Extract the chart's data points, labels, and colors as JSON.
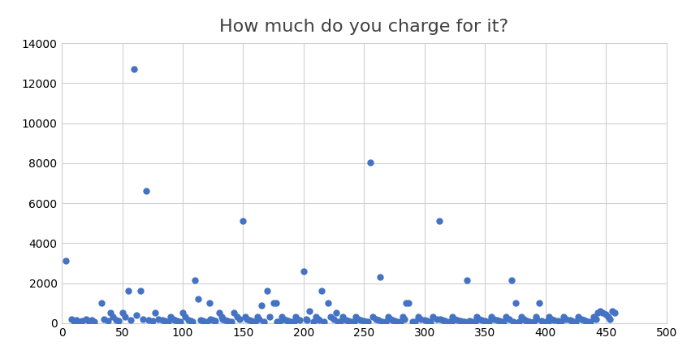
{
  "title": "How much do you charge for it?",
  "title_fontsize": 16,
  "dot_color": "#4472C4",
  "dot_size": 25,
  "xlim": [
    0,
    500
  ],
  "ylim": [
    0,
    14000
  ],
  "xticks": [
    0,
    50,
    100,
    150,
    200,
    250,
    300,
    350,
    400,
    450,
    500
  ],
  "yticks": [
    0,
    2000,
    4000,
    6000,
    8000,
    10000,
    12000,
    14000
  ],
  "grid_color": "#d0d0d0",
  "background_color": "#ffffff",
  "x_data": [
    3,
    8,
    10,
    12,
    15,
    17,
    20,
    22,
    25,
    27,
    33,
    35,
    38,
    40,
    42,
    45,
    47,
    50,
    52,
    55,
    57,
    60,
    62,
    65,
    67,
    70,
    72,
    75,
    77,
    80,
    83,
    85,
    88,
    90,
    92,
    93,
    95,
    98,
    100,
    102,
    105,
    107,
    108,
    110,
    113,
    115,
    117,
    120,
    122,
    123,
    125,
    127,
    130,
    132,
    133,
    135,
    137,
    138,
    140,
    142,
    145,
    147,
    150,
    152,
    153,
    155,
    157,
    160,
    162,
    163,
    165,
    167,
    170,
    172,
    175,
    177,
    178,
    180,
    182,
    183,
    185,
    187,
    190,
    192,
    193,
    195,
    197,
    200,
    202,
    203,
    205,
    208,
    210,
    212,
    213,
    215,
    217,
    220,
    222,
    225,
    227,
    228,
    230,
    232,
    235,
    237,
    240,
    242,
    243,
    245,
    247,
    250,
    252,
    253,
    255,
    257,
    260,
    262,
    263,
    265,
    268,
    270,
    272,
    273,
    275,
    277,
    280,
    282,
    283,
    285,
    287,
    290,
    292,
    295,
    297,
    300,
    302,
    303,
    305,
    307,
    310,
    312,
    313,
    315,
    317,
    320,
    322,
    323,
    325,
    327,
    330,
    332,
    333,
    335,
    337,
    340,
    342,
    343,
    345,
    347,
    350,
    352,
    353,
    355,
    357,
    360,
    362,
    363,
    365,
    367,
    370,
    372,
    373,
    375,
    378,
    380,
    382,
    383,
    385,
    387,
    390,
    392,
    393,
    395,
    397,
    400,
    402,
    403,
    405,
    407,
    410,
    412,
    413,
    415,
    417,
    420,
    422,
    423,
    425,
    427,
    430,
    432,
    433,
    435,
    437,
    440,
    442,
    443,
    445,
    447,
    450,
    452,
    453,
    455,
    457
  ],
  "y_data": [
    3100,
    200,
    100,
    150,
    80,
    120,
    200,
    100,
    150,
    60,
    1000,
    200,
    100,
    500,
    300,
    150,
    100,
    500,
    300,
    1600,
    150,
    12700,
    400,
    1600,
    200,
    6600,
    150,
    100,
    500,
    200,
    150,
    100,
    60,
    300,
    200,
    150,
    100,
    60,
    500,
    300,
    150,
    100,
    80,
    2150,
    1200,
    150,
    100,
    80,
    1000,
    200,
    150,
    100,
    500,
    300,
    200,
    150,
    100,
    80,
    60,
    500,
    300,
    200,
    5100,
    300,
    200,
    150,
    100,
    80,
    300,
    200,
    900,
    80,
    1600,
    300,
    1000,
    1000,
    80,
    60,
    300,
    200,
    150,
    100,
    80,
    60,
    300,
    200,
    150,
    2600,
    200,
    150,
    600,
    60,
    300,
    200,
    150,
    1600,
    80,
    1000,
    300,
    200,
    500,
    80,
    60,
    300,
    150,
    100,
    80,
    60,
    300,
    200,
    150,
    100,
    80,
    60,
    8050,
    300,
    200,
    150,
    2300,
    80,
    60,
    300,
    200,
    150,
    100,
    80,
    60,
    300,
    200,
    1000,
    1000,
    80,
    60,
    300,
    200,
    150,
    100,
    80,
    60,
    300,
    200,
    5100,
    200,
    150,
    100,
    80,
    60,
    300,
    200,
    150,
    100,
    80,
    60,
    2150,
    100,
    80,
    60,
    300,
    200,
    150,
    100,
    80,
    60,
    300,
    200,
    150,
    100,
    80,
    60,
    300,
    200,
    2150,
    80,
    1000,
    60,
    300,
    200,
    150,
    100,
    80,
    60,
    300,
    200,
    1000,
    100,
    80,
    60,
    300,
    200,
    150,
    100,
    80,
    60,
    300,
    200,
    150,
    100,
    80,
    60,
    300,
    200,
    150,
    100,
    80,
    60,
    300,
    200,
    500,
    600,
    500,
    450,
    300,
    200,
    600,
    500
  ]
}
